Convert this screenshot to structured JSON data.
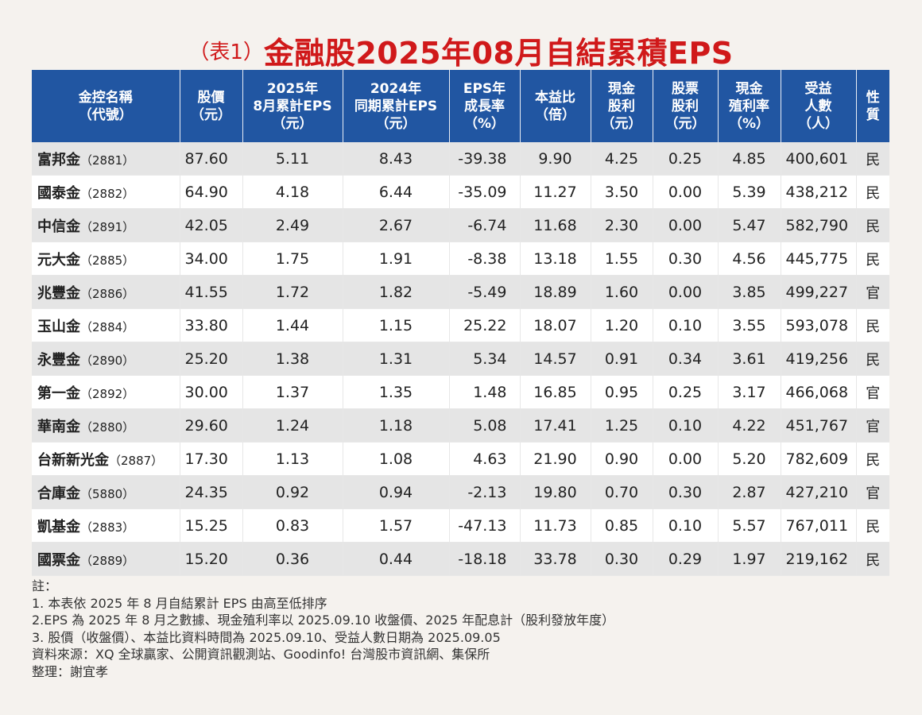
{
  "title": {
    "prefix": "（表1）",
    "main": "金融股2025年08月自結累積EPS"
  },
  "columns": [
    [
      "金控名稱",
      "（代號）"
    ],
    [
      "股價",
      "（元）"
    ],
    [
      "2025年",
      "8月累計EPS",
      "（元）"
    ],
    [
      "2024年",
      "同期累計EPS",
      "（元）"
    ],
    [
      "EPS年",
      "成長率",
      "（%）"
    ],
    [
      "本益比",
      "（倍）"
    ],
    [
      "現金",
      "股利",
      "（元）"
    ],
    [
      "股票",
      "股利",
      "（元）"
    ],
    [
      "現金",
      "殖利率",
      "（%）"
    ],
    [
      "受益",
      "人數",
      "（人）"
    ],
    [
      "性",
      "質"
    ]
  ],
  "rows": [
    {
      "name": "富邦金",
      "code": "（2881）",
      "price": "87.60",
      "eps2025": "5.11",
      "eps2024": "8.43",
      "growth": "-39.38",
      "pe": "9.90",
      "cash_div": "4.25",
      "stock_div": "0.25",
      "yield": "4.85",
      "holders": "400,601",
      "type": "民"
    },
    {
      "name": "國泰金",
      "code": "（2882）",
      "price": "64.90",
      "eps2025": "4.18",
      "eps2024": "6.44",
      "growth": "-35.09",
      "pe": "11.27",
      "cash_div": "3.50",
      "stock_div": "0.00",
      "yield": "5.39",
      "holders": "438,212",
      "type": "民"
    },
    {
      "name": "中信金",
      "code": "（2891）",
      "price": "42.05",
      "eps2025": "2.49",
      "eps2024": "2.67",
      "growth": "-6.74",
      "pe": "11.68",
      "cash_div": "2.30",
      "stock_div": "0.00",
      "yield": "5.47",
      "holders": "582,790",
      "type": "民"
    },
    {
      "name": "元大金",
      "code": "（2885）",
      "price": "34.00",
      "eps2025": "1.75",
      "eps2024": "1.91",
      "growth": "-8.38",
      "pe": "13.18",
      "cash_div": "1.55",
      "stock_div": "0.30",
      "yield": "4.56",
      "holders": "445,775",
      "type": "民"
    },
    {
      "name": "兆豐金",
      "code": "（2886）",
      "price": "41.55",
      "eps2025": "1.72",
      "eps2024": "1.82",
      "growth": "-5.49",
      "pe": "18.89",
      "cash_div": "1.60",
      "stock_div": "0.00",
      "yield": "3.85",
      "holders": "499,227",
      "type": "官"
    },
    {
      "name": "玉山金",
      "code": "（2884）",
      "price": "33.80",
      "eps2025": "1.44",
      "eps2024": "1.15",
      "growth": "25.22",
      "pe": "18.07",
      "cash_div": "1.20",
      "stock_div": "0.10",
      "yield": "3.55",
      "holders": "593,078",
      "type": "民"
    },
    {
      "name": "永豐金",
      "code": "（2890）",
      "price": "25.20",
      "eps2025": "1.38",
      "eps2024": "1.31",
      "growth": "5.34",
      "pe": "14.57",
      "cash_div": "0.91",
      "stock_div": "0.34",
      "yield": "3.61",
      "holders": "419,256",
      "type": "民"
    },
    {
      "name": "第一金",
      "code": "（2892）",
      "price": "30.00",
      "eps2025": "1.37",
      "eps2024": "1.35",
      "growth": "1.48",
      "pe": "16.85",
      "cash_div": "0.95",
      "stock_div": "0.25",
      "yield": "3.17",
      "holders": "466,068",
      "type": "官"
    },
    {
      "name": "華南金",
      "code": "（2880）",
      "price": "29.60",
      "eps2025": "1.24",
      "eps2024": "1.18",
      "growth": "5.08",
      "pe": "17.41",
      "cash_div": "1.25",
      "stock_div": "0.10",
      "yield": "4.22",
      "holders": "451,767",
      "type": "官"
    },
    {
      "name": "台新新光金",
      "code": "（2887）",
      "price": "17.30",
      "eps2025": "1.13",
      "eps2024": "1.08",
      "growth": "4.63",
      "pe": "21.90",
      "cash_div": "0.90",
      "stock_div": "0.00",
      "yield": "5.20",
      "holders": "782,609",
      "type": "民"
    },
    {
      "name": "合庫金",
      "code": "（5880）",
      "price": "24.35",
      "eps2025": "0.92",
      "eps2024": "0.94",
      "growth": "-2.13",
      "pe": "19.80",
      "cash_div": "0.70",
      "stock_div": "0.30",
      "yield": "2.87",
      "holders": "427,210",
      "type": "官"
    },
    {
      "name": "凱基金",
      "code": "（2883）",
      "price": "15.25",
      "eps2025": "0.83",
      "eps2024": "1.57",
      "growth": "-47.13",
      "pe": "11.73",
      "cash_div": "0.85",
      "stock_div": "0.10",
      "yield": "5.57",
      "holders": "767,011",
      "type": "民"
    },
    {
      "name": "國票金",
      "code": "（2889）",
      "price": "15.20",
      "eps2025": "0.36",
      "eps2024": "0.44",
      "growth": "-18.18",
      "pe": "33.78",
      "cash_div": "0.30",
      "stock_div": "0.29",
      "yield": "1.97",
      "holders": "219,162",
      "type": "民"
    }
  ],
  "notes": [
    "註：",
    "1. 本表依 2025 年 8 月自結累計 EPS 由高至低排序",
    "2.EPS 為 2025 年 8 月之數據、現金殖利率以 2025.09.10 收盤價、2025 年配息計（股利發放年度）",
    "3. 股價（收盤價）、本益比資料時間為 2025.09.10、受益人數日期為 2025.09.05",
    "資料來源：XQ 全球贏家、公開資訊觀測站、Goodinfo! 台灣股市資訊網、集保所",
    "整理：謝宜孝"
  ]
}
